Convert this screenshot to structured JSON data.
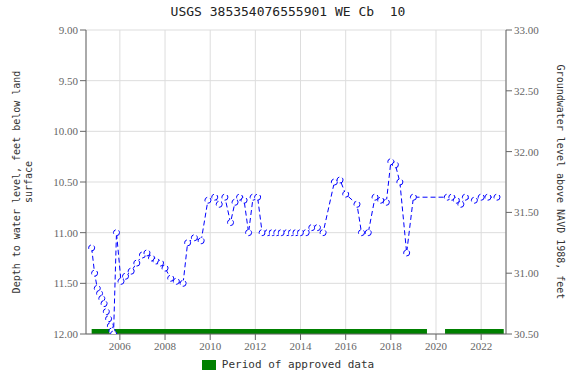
{
  "chart_data": {
    "type": "line",
    "title": "USGS 385354076555901 WE Cb  10",
    "y_label": "Depth to water level, feet below land\nsurface",
    "y2_label": "Groundwater level above NAVD 1988, feet",
    "x": [
      2004.75,
      2004.88,
      2005.0,
      2005.1,
      2005.2,
      2005.3,
      2005.4,
      2005.5,
      2005.58,
      2005.65,
      2005.72,
      2005.85,
      2006.05,
      2006.25,
      2006.5,
      2006.75,
      2007.0,
      2007.2,
      2007.4,
      2007.6,
      2007.8,
      2008.0,
      2008.25,
      2008.5,
      2008.8,
      2009.0,
      2009.3,
      2009.6,
      2009.9,
      2010.2,
      2010.4,
      2010.65,
      2010.9,
      2011.1,
      2011.3,
      2011.5,
      2011.7,
      2011.9,
      2012.1,
      2012.3,
      2012.55,
      2012.75,
      2012.95,
      2013.15,
      2013.4,
      2013.6,
      2013.8,
      2014.0,
      2014.25,
      2014.5,
      2014.75,
      2015.0,
      2015.5,
      2015.75,
      2016.0,
      2016.5,
      2016.7,
      2017.0,
      2017.3,
      2017.55,
      2017.8,
      2018.0,
      2018.2,
      2018.4,
      2018.7,
      2019.0,
      2020.5,
      2020.7,
      2020.9,
      2021.1,
      2021.3,
      2021.7,
      2022.0,
      2022.3,
      2022.7
    ],
    "values": [
      11.15,
      11.4,
      11.55,
      11.6,
      11.65,
      11.7,
      11.78,
      11.85,
      11.92,
      11.97,
      12.0,
      11.0,
      11.48,
      11.43,
      11.38,
      11.3,
      11.22,
      11.2,
      11.25,
      11.28,
      11.3,
      11.35,
      11.45,
      11.48,
      11.5,
      11.1,
      11.05,
      11.08,
      10.68,
      10.65,
      10.72,
      10.65,
      10.9,
      10.7,
      10.65,
      10.68,
      11.0,
      10.65,
      10.65,
      11.0,
      11.0,
      11.0,
      11.0,
      11.0,
      11.0,
      11.0,
      11.0,
      11.0,
      11.0,
      10.95,
      10.95,
      11.0,
      10.5,
      10.48,
      10.62,
      10.72,
      11.0,
      11.0,
      10.65,
      10.68,
      10.7,
      10.3,
      10.33,
      10.5,
      11.2,
      10.65,
      10.65,
      10.65,
      10.68,
      10.72,
      10.65,
      10.68,
      10.65,
      10.65,
      10.65
    ],
    "color": "#0000ff",
    "marker": "circle",
    "line_style": "dashed",
    "xlim": [
      2004.5,
      2023.1
    ],
    "xticks": [
      2006,
      2008,
      2010,
      2012,
      2014,
      2016,
      2018,
      2020,
      2022
    ],
    "ylim": [
      12.0,
      9.0
    ],
    "yticks": [
      {
        "value": 9.0,
        "label": "9.00"
      },
      {
        "value": 9.5,
        "label": "9.50"
      },
      {
        "value": 10.0,
        "label": "10.00"
      },
      {
        "value": 10.5,
        "label": "10.50"
      },
      {
        "value": 11.0,
        "label": "11.00"
      },
      {
        "value": 11.5,
        "label": "11.50"
      },
      {
        "value": 12.0,
        "label": "12.00"
      }
    ],
    "y2lim": [
      30.5,
      33.0
    ],
    "y2ticks": [
      {
        "value": 30.5,
        "label": "30.50"
      },
      {
        "value": 31.0,
        "label": "31.00"
      },
      {
        "value": 31.5,
        "label": "31.50"
      },
      {
        "value": 32.0,
        "label": "32.00"
      },
      {
        "value": 32.5,
        "label": "32.50"
      },
      {
        "value": 33.0,
        "label": "33.00"
      }
    ],
    "grid": true,
    "approved_periods": {
      "name": "Period of approved data",
      "color": "#008000",
      "ranges": [
        [
          2004.75,
          2019.6
        ],
        [
          2020.4,
          2023.0
        ]
      ]
    }
  }
}
